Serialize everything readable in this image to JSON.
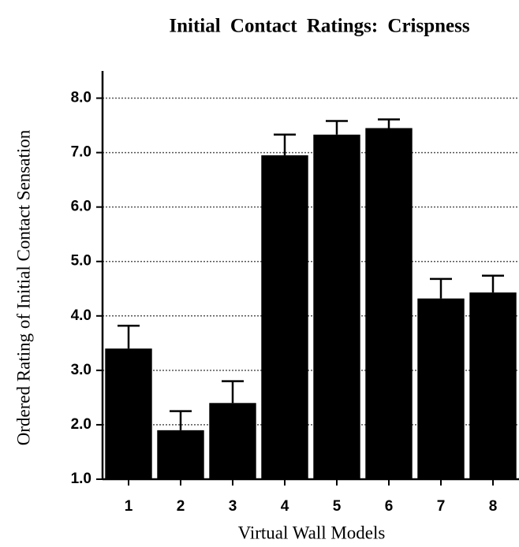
{
  "chart_data": {
    "type": "bar",
    "title": "Initial Contact Ratings: Crispness",
    "x_label": "Virtual Wall Models",
    "y_label": "Ordered Rating of Initial Contact Sensation",
    "categories": [
      "1",
      "2",
      "3",
      "4",
      "5",
      "6",
      "7",
      "8"
    ],
    "values": [
      3.4,
      1.9,
      2.4,
      6.95,
      7.33,
      7.45,
      4.32,
      4.43
    ],
    "errors": [
      0.42,
      0.35,
      0.4,
      0.38,
      0.25,
      0.16,
      0.36,
      0.31
    ],
    "color": "#000000",
    "ylim": [
      1.0,
      8.5
    ],
    "yticks": [
      {
        "value": 1.0,
        "label": "1.0"
      },
      {
        "value": 2.0,
        "label": "2.0"
      },
      {
        "value": 3.0,
        "label": "3.0"
      },
      {
        "value": 4.0,
        "label": "4.0"
      },
      {
        "value": 5.0,
        "label": "5.0"
      },
      {
        "value": 6.0,
        "label": "6.0"
      },
      {
        "value": 7.0,
        "label": "7.0"
      },
      {
        "value": 8.0,
        "label": "8.0"
      }
    ],
    "grid": true
  }
}
